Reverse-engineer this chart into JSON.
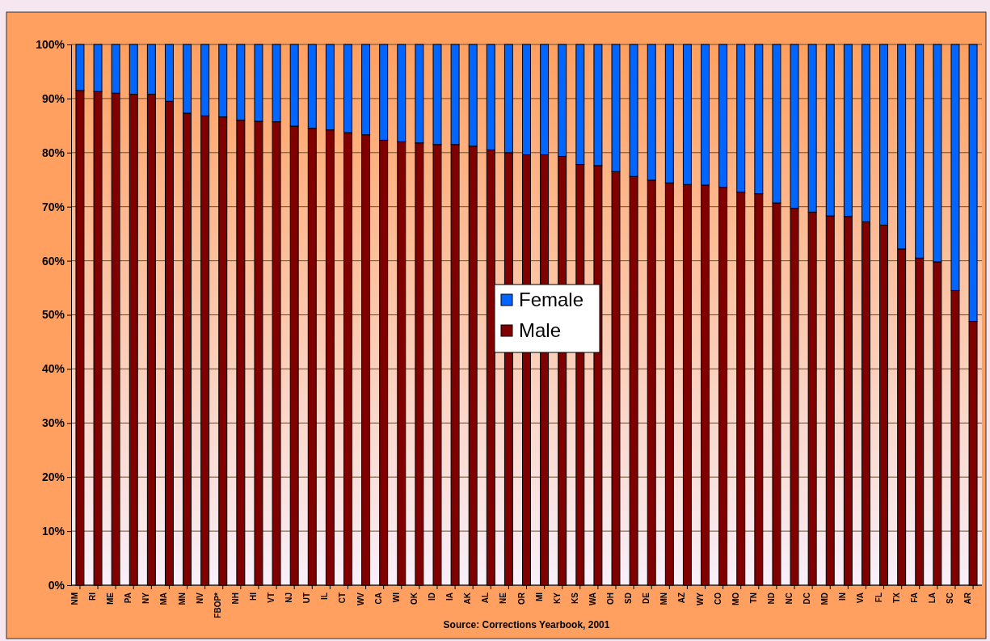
{
  "chart_data": {
    "type": "bar",
    "stacked": true,
    "categories": [
      "NM",
      "RI",
      "ME",
      "PA",
      "NY",
      "MA",
      "MN",
      "NV",
      "FBOP*",
      "NH",
      "HI",
      "VT",
      "NJ",
      "UT",
      "IL",
      "CT",
      "WV",
      "CA",
      "WI",
      "OK",
      "ID",
      "IA",
      "AK",
      "AL",
      "NE",
      "OR",
      "MI",
      "KY",
      "KS",
      "WA",
      "OH",
      "SD",
      "DE",
      "MN",
      "AZ",
      "WY",
      "CO",
      "MO",
      "TN",
      "ND",
      "NC",
      "DC",
      "MD",
      "IN",
      "VA",
      "FL",
      "TX",
      "FA",
      "LA",
      "SC",
      "AR"
    ],
    "series": [
      {
        "name": "Male",
        "color": "#800000",
        "values": [
          91.5,
          91.3,
          91,
          90.8,
          90.8,
          89.5,
          87.3,
          86.8,
          86.6,
          86,
          85.8,
          85.7,
          84.9,
          84.5,
          84.2,
          83.7,
          83.3,
          82.3,
          82,
          81.8,
          81.5,
          81.5,
          81.2,
          80.5,
          80,
          79.6,
          79.6,
          79.3,
          77.8,
          77.6,
          76.5,
          75.6,
          74.9,
          74.4,
          74.1,
          74,
          73.6,
          72.7,
          72.4,
          70.7,
          69.7,
          69,
          68.3,
          68.2,
          67.2,
          66.6,
          62.2,
          60.5,
          59.8,
          54.5,
          48.8
        ]
      },
      {
        "name": "Female",
        "color": "#0066ff",
        "values": [
          8.5,
          8.7,
          9,
          9.2,
          9.2,
          10.5,
          12.7,
          13.2,
          13.4,
          14,
          14.2,
          14.3,
          15.1,
          15.5,
          15.8,
          16.3,
          16.7,
          17.7,
          18,
          18.2,
          18.5,
          18.5,
          18.8,
          19.5,
          20,
          20.4,
          20.4,
          20.7,
          22.2,
          22.4,
          23.5,
          24.4,
          25.1,
          25.6,
          25.9,
          26,
          26.4,
          27.3,
          27.6,
          29.3,
          30.3,
          31,
          31.7,
          31.8,
          32.8,
          33.4,
          37.8,
          39.5,
          40.2,
          45.5,
          51.2
        ]
      }
    ],
    "ylim": [
      0,
      100
    ],
    "yticks": [
      {
        "value": 0,
        "label": "0%"
      },
      {
        "value": 10,
        "label": "10%"
      },
      {
        "value": 20,
        "label": "20%"
      },
      {
        "value": 30,
        "label": "30%"
      },
      {
        "value": 40,
        "label": "40%"
      },
      {
        "value": 50,
        "label": "50%"
      },
      {
        "value": 60,
        "label": "60%"
      },
      {
        "value": 70,
        "label": "70%"
      },
      {
        "value": 80,
        "label": "80%"
      },
      {
        "value": 90,
        "label": "90%"
      },
      {
        "value": 100,
        "label": "100%"
      }
    ],
    "grid": "y",
    "legend": "center",
    "annotations": [
      "Source: Corrections Yearbook, 2001"
    ]
  }
}
